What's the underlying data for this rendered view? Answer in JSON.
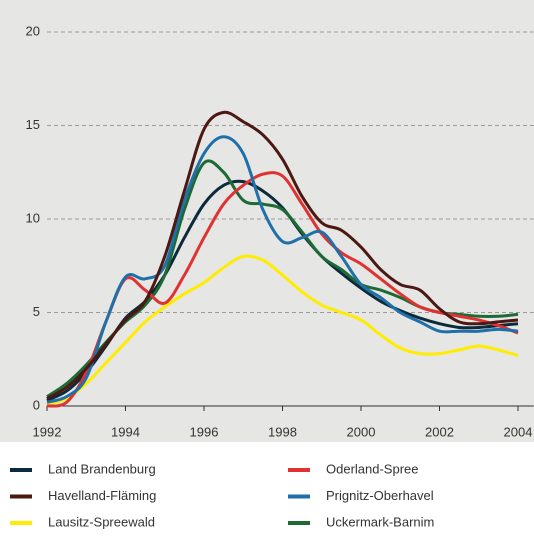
{
  "chart_data": {
    "type": "line",
    "x": [
      1992,
      1992.5,
      1993,
      1993.5,
      1994,
      1994.5,
      1995,
      1995.5,
      1996,
      1996.5,
      1997,
      1997.5,
      1998,
      1998.5,
      1999,
      1999.5,
      2000,
      2000.5,
      2001,
      2001.5,
      2002,
      2002.5,
      2003,
      2003.5,
      2004
    ],
    "xlim": [
      1992,
      2004.4
    ],
    "xticks": [
      1992,
      1994,
      1996,
      1998,
      2000,
      2002,
      2004
    ],
    "ylim": [
      0,
      20
    ],
    "yticks": [
      0,
      5,
      10,
      15,
      20
    ],
    "grid": true,
    "series": [
      {
        "name": "Land Brandenburg",
        "color": "#0b2a3c",
        "values": [
          0.3,
          0.8,
          1.8,
          3.2,
          4.7,
          5.6,
          7,
          9,
          10.8,
          11.8,
          12,
          11.5,
          10.6,
          9.2,
          8,
          7.1,
          6.3,
          5.6,
          5.1,
          4.7,
          4.4,
          4.2,
          4.2,
          4.3,
          4.4
        ]
      },
      {
        "name": "Havelland-Fläming",
        "color": "#4b1812",
        "values": [
          0.4,
          1,
          2,
          3.3,
          4.6,
          5.6,
          8,
          11.5,
          14.8,
          15.7,
          15.2,
          14.5,
          13.2,
          11.2,
          9.8,
          9.4,
          8.5,
          7.3,
          6.5,
          6.2,
          5.2,
          4.5,
          4.4,
          4.5,
          4.6
        ]
      },
      {
        "name": "Lausitz-Spreewald",
        "color": "#ffec00",
        "values": [
          0.1,
          0.4,
          1.2,
          2.3,
          3.4,
          4.5,
          5.3,
          6,
          6.6,
          7.4,
          8,
          7.8,
          7,
          6.1,
          5.4,
          5,
          4.6,
          3.8,
          3.1,
          2.8,
          2.8,
          3,
          3.2,
          3,
          2.7
        ]
      },
      {
        "name": "Oderland-Spree",
        "color": "#e03232",
        "values": [
          0,
          0.2,
          1.8,
          4.5,
          6.8,
          6.2,
          5.5,
          7,
          9,
          10.8,
          11.8,
          12.4,
          12.3,
          10.8,
          9.2,
          8.2,
          7.6,
          6.8,
          6,
          5.3,
          5,
          4.8,
          4.6,
          4.3,
          3.9
        ]
      },
      {
        "name": "Prignitz-Oberhavel",
        "color": "#1f6fa8",
        "values": [
          0.2,
          0.5,
          1.5,
          4.5,
          6.9,
          6.8,
          7.5,
          11,
          13.5,
          14.4,
          13.5,
          10.5,
          8.8,
          9,
          9.3,
          8,
          6.5,
          5.8,
          5,
          4.5,
          4,
          4,
          4,
          4.1,
          4
        ]
      },
      {
        "name": "Uckermark-Barnim",
        "color": "#1e6a35",
        "values": [
          0.5,
          1.2,
          2.2,
          3.4,
          4.5,
          5.4,
          7,
          10.5,
          13,
          12.5,
          11,
          10.8,
          10.5,
          9.3,
          8,
          7.3,
          6.5,
          6.2,
          5.8,
          5.3,
          5,
          4.9,
          4.8,
          4.8,
          4.9
        ]
      }
    ]
  }
}
